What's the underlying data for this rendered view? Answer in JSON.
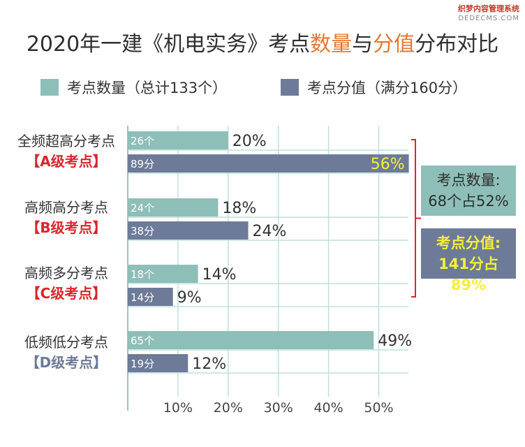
{
  "watermark": {
    "line1": "织梦内容管理系统",
    "line2": "DEDECMS.COM"
  },
  "title": {
    "part1": "2020年一建《机电实务》考点",
    "hl1": "数量",
    "part2": "与",
    "hl2": "分值",
    "part3": "分布对比"
  },
  "chart_data": {
    "type": "bar",
    "orientation": "horizontal",
    "categories": [
      "全频超高分考点",
      "高频高分考点",
      "高频多分考点",
      "低频低分考点"
    ],
    "grades": [
      "【A级考点】",
      "【B级考点】",
      "【C级考点】",
      "【D级考点】"
    ],
    "grade_colors": [
      "#d9262c",
      "#d9262c",
      "#d9262c",
      "#6d7b98"
    ],
    "series": [
      {
        "name": "考点数量（总计133个）",
        "color": "#8dbfb8",
        "values": [
          20,
          18,
          14,
          49
        ],
        "inner_labels": [
          "26个",
          "24个",
          "18个",
          "65个"
        ],
        "value_labels": [
          "20%",
          "18%",
          "14%",
          "49%"
        ]
      },
      {
        "name": "考点分值（满分160分）",
        "color": "#6d7b98",
        "values": [
          56,
          24,
          9,
          12
        ],
        "inner_labels": [
          "89分",
          "38分",
          "14分",
          "19分"
        ],
        "value_labels": [
          "56%",
          "24%",
          "9%",
          "12%"
        ]
      }
    ],
    "x_ticks": [
      "10%",
      "20%",
      "30%",
      "40%",
      "50%"
    ],
    "x_tick_values": [
      10,
      20,
      30,
      40,
      50
    ],
    "xlim": [
      0,
      58
    ],
    "grid": true,
    "legend": "top",
    "callouts": [
      {
        "line1": "考点数量:",
        "line2": "68个占52%",
        "bg": "#8dbfb8",
        "fg": "#2f2f2f"
      },
      {
        "line1": "考点分值:",
        "line2": "141分占89%",
        "bg": "#6d7b98",
        "fg": "#f5ef3a"
      }
    ],
    "bracket_color": "#d9262c",
    "highlight_label_color": "#f5ef3a"
  }
}
